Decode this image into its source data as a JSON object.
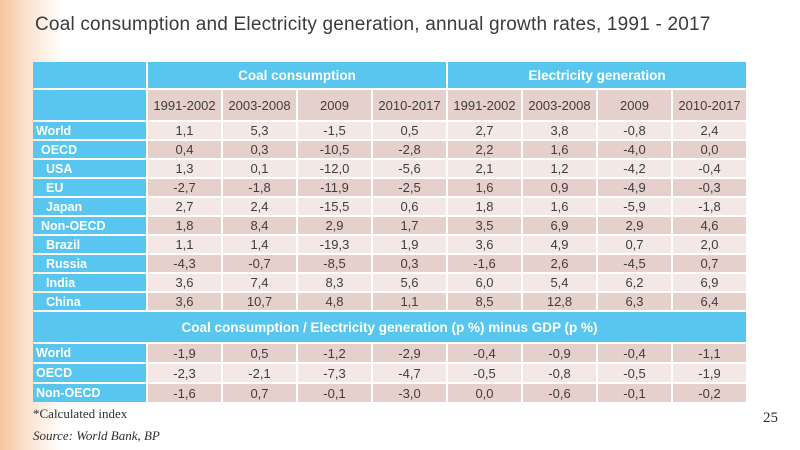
{
  "slide": {
    "title": "Coal consumption and Electricity generation, annual growth rates, 1991 - 2017",
    "footnote": "*Calculated index",
    "source": "Source: World Bank, BP",
    "page_number": "25"
  },
  "colors": {
    "header_blue": "#58c6ee",
    "row_dark_pink": "#e6d0cb",
    "row_light_pink": "#f3e8e6",
    "edge_gradient_peach": "#f7c49c",
    "title_text": "#3b3b3b",
    "cell_text": "#3e3e3e",
    "label_text": "#ffffff"
  },
  "table": {
    "col_groups": [
      "Coal consumption",
      "Electricity generation"
    ],
    "year_headers": [
      "1991-2002",
      "2003-2008",
      "2009",
      "2010-2017",
      "1991-2002",
      "2003-2008",
      "2009",
      "2010-2017"
    ],
    "rows": [
      {
        "label": "World",
        "indent": 0,
        "values": [
          "1,1",
          "5,3",
          "-1,5",
          "0,5",
          "2,7",
          "3,8",
          "-0,8",
          "2,4"
        ]
      },
      {
        "label": "OECD",
        "indent": 1,
        "values": [
          "0,4",
          "0,3",
          "-10,5",
          "-2,8",
          "2,2",
          "1,6",
          "-4,0",
          "0,0"
        ]
      },
      {
        "label": "USA",
        "indent": 2,
        "values": [
          "1,3",
          "0,1",
          "-12,0",
          "-5,6",
          "2,1",
          "1,2",
          "-4,2",
          "-0,4"
        ]
      },
      {
        "label": "EU",
        "indent": 2,
        "values": [
          "-2,7",
          "-1,8",
          "-11,9",
          "-2,5",
          "1,6",
          "0,9",
          "-4,9",
          "-0,3"
        ]
      },
      {
        "label": "Japan",
        "indent": 2,
        "values": [
          "2,7",
          "2,4",
          "-15,5",
          "0,6",
          "1,8",
          "1,6",
          "-5,9",
          "-1,8"
        ]
      },
      {
        "label": "Non-OECD",
        "indent": 1,
        "values": [
          "1,8",
          "8,4",
          "2,9",
          "1,7",
          "3,5",
          "6,9",
          "2,9",
          "4,6"
        ]
      },
      {
        "label": "Brazil",
        "indent": 2,
        "values": [
          "1,1",
          "1,4",
          "-19,3",
          "1,9",
          "3,6",
          "4,9",
          "0,7",
          "2,0"
        ]
      },
      {
        "label": "Russia",
        "indent": 2,
        "values": [
          "-4,3",
          "-0,7",
          "-8,5",
          "0,3",
          "-1,6",
          "2,6",
          "-4,5",
          "0,7"
        ]
      },
      {
        "label": "India",
        "indent": 2,
        "values": [
          "3,6",
          "7,4",
          "8,3",
          "5,6",
          "6,0",
          "5,4",
          "6,2",
          "6,9"
        ]
      },
      {
        "label": "China",
        "indent": 2,
        "values": [
          "3,6",
          "10,7",
          "4,8",
          "1,1",
          "8,5",
          "12,8",
          "6,3",
          "6,4"
        ]
      }
    ],
    "section2": {
      "header": "Coal consumption / Electricity generation (p %) minus GDP (p %)",
      "rows": [
        {
          "label": "World",
          "indent": 0,
          "values": [
            "-1,9",
            "0,5",
            "-1,2",
            "-2,9",
            "-0,4",
            "-0,9",
            "-0,4",
            "-1,1"
          ]
        },
        {
          "label": "OECD",
          "indent": 0,
          "values": [
            "-2,3",
            "-2,1",
            "-7,3",
            "-4,7",
            "-0,5",
            "-0,8",
            "-0,5",
            "-1,9"
          ]
        },
        {
          "label": "Non-OECD",
          "indent": 0,
          "values": [
            "-1,6",
            "0,7",
            "-0,1",
            "-3,0",
            "0,0",
            "-0,6",
            "-0,1",
            "-0,2"
          ]
        }
      ]
    }
  }
}
